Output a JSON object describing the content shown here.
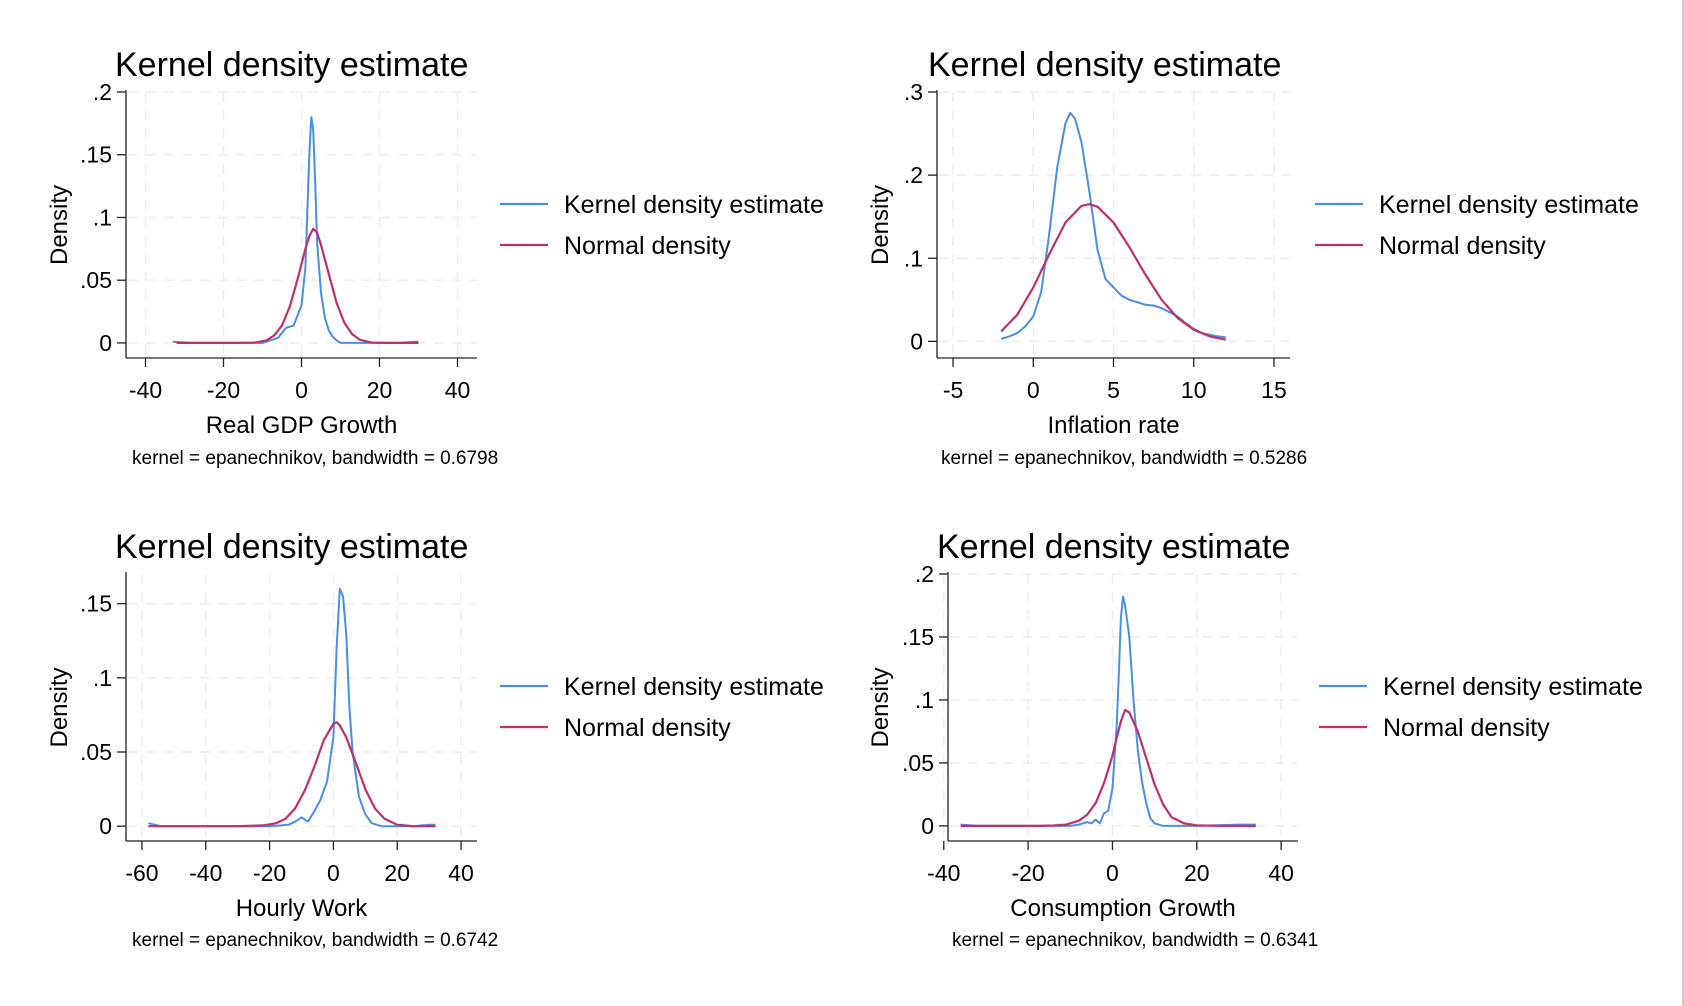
{
  "colors": {
    "kde": "#4a8fe7",
    "normal": "#c0306a"
  },
  "chart_data": [
    {
      "type": "line",
      "title": "Kernel density estimate",
      "xlabel": "Real GDP Growth",
      "ylabel": "Density",
      "note": "kernel = epanechnikov, bandwidth = 0.6798",
      "xlim": [
        -45,
        45
      ],
      "ylim": [
        -0.012,
        0.2
      ],
      "xticks": [
        -40,
        -20,
        0,
        20,
        40
      ],
      "xtick_labels": [
        "-40",
        "-20",
        "0",
        "20",
        "40"
      ],
      "yticks": [
        0,
        0.05,
        0.1,
        0.15,
        0.2
      ],
      "ytick_labels": [
        "0",
        ".05",
        ".1",
        ".15",
        ".2"
      ],
      "grid": true,
      "legend_position": "right",
      "series": [
        {
          "name": "Kernel density estimate",
          "x": [
            -33,
            -31,
            -28,
            -20,
            -10,
            -6,
            -4,
            -2,
            -1,
            0,
            1,
            2,
            2.5,
            3,
            3.5,
            4,
            5,
            6,
            7,
            8,
            9,
            10,
            12,
            15,
            20,
            25,
            29,
            30
          ],
          "y": [
            0.001,
            0.0005,
            0,
            0,
            0,
            0.004,
            0.012,
            0.014,
            0.022,
            0.03,
            0.06,
            0.15,
            0.18,
            0.17,
            0.13,
            0.08,
            0.04,
            0.02,
            0.01,
            0.005,
            0.002,
            0,
            0,
            0,
            0,
            0,
            0.001,
            0.001
          ]
        },
        {
          "name": "Normal density",
          "x": [
            -32,
            -28,
            -24,
            -20,
            -16,
            -12,
            -9,
            -7,
            -5,
            -3,
            -1,
            1,
            2,
            3,
            4,
            5,
            7,
            9,
            11,
            13,
            15,
            18,
            22,
            26,
            30
          ],
          "y": [
            0,
            0,
            0,
            0,
            0,
            0.0003,
            0.002,
            0.006,
            0.014,
            0.029,
            0.051,
            0.075,
            0.085,
            0.091,
            0.088,
            0.078,
            0.055,
            0.032,
            0.016,
            0.007,
            0.0025,
            0.0003,
            0,
            0,
            0
          ]
        }
      ]
    },
    {
      "type": "line",
      "title": "Kernel density estimate",
      "xlabel": "Inflation rate",
      "ylabel": "Density",
      "note": "kernel = epanechnikov, bandwidth = 0.5286",
      "xlim": [
        -6,
        16
      ],
      "ylim": [
        -0.02,
        0.3
      ],
      "xticks": [
        -5,
        0,
        5,
        10,
        15
      ],
      "xtick_labels": [
        "-5",
        "0",
        "5",
        "10",
        "15"
      ],
      "yticks": [
        0,
        0.1,
        0.2,
        0.3
      ],
      "ytick_labels": [
        "0",
        ".1",
        ".2",
        ".3"
      ],
      "grid": true,
      "legend_position": "right",
      "series": [
        {
          "name": "Kernel density estimate",
          "x": [
            -2,
            -1.5,
            -1,
            -0.5,
            0,
            0.5,
            1,
            1.5,
            2,
            2.3,
            2.6,
            3,
            3.5,
            4,
            4.5,
            5,
            5.5,
            6,
            6.5,
            7,
            7.5,
            8,
            8.5,
            9,
            9.5,
            10,
            10.5,
            11,
            11.5,
            12
          ],
          "y": [
            0.003,
            0.006,
            0.01,
            0.018,
            0.03,
            0.06,
            0.13,
            0.21,
            0.262,
            0.275,
            0.268,
            0.24,
            0.18,
            0.11,
            0.075,
            0.065,
            0.055,
            0.05,
            0.047,
            0.044,
            0.043,
            0.04,
            0.035,
            0.03,
            0.022,
            0.015,
            0.01,
            0.008,
            0.006,
            0.005
          ]
        },
        {
          "name": "Normal density",
          "x": [
            -2,
            -1,
            0,
            1,
            2,
            3,
            3.5,
            4,
            5,
            6,
            7,
            8,
            9,
            10,
            11,
            12
          ],
          "y": [
            0.012,
            0.032,
            0.065,
            0.105,
            0.143,
            0.163,
            0.165,
            0.162,
            0.143,
            0.113,
            0.08,
            0.05,
            0.028,
            0.014,
            0.006,
            0.002
          ]
        }
      ]
    },
    {
      "type": "line",
      "title": "Kernel density estimate",
      "xlabel": "Hourly Work",
      "ylabel": "Density",
      "note": "kernel = epanechnikov, bandwidth = 0.6742",
      "xlim": [
        -65,
        45
      ],
      "ylim": [
        -0.01,
        0.17
      ],
      "xticks": [
        -60,
        -40,
        -20,
        0,
        20,
        40
      ],
      "xtick_labels": [
        "-60",
        "-40",
        "-20",
        "0",
        "20",
        "40"
      ],
      "yticks": [
        0,
        0.05,
        0.1,
        0.15
      ],
      "ytick_labels": [
        "0",
        ".05",
        ".1",
        ".15"
      ],
      "grid": true,
      "legend_position": "right",
      "series": [
        {
          "name": "Kernel density estimate",
          "x": [
            -58,
            -56,
            -54,
            -40,
            -20,
            -14,
            -12,
            -10,
            -8,
            -6,
            -4,
            -2,
            0,
            1,
            2,
            3,
            4,
            5,
            6,
            8,
            10,
            12,
            15,
            20,
            25,
            30,
            32
          ],
          "y": [
            0.002,
            0.001,
            0,
            0,
            0,
            0.001,
            0.003,
            0.006,
            0.003,
            0.01,
            0.018,
            0.03,
            0.06,
            0.12,
            0.16,
            0.155,
            0.13,
            0.08,
            0.05,
            0.02,
            0.008,
            0.002,
            0,
            0,
            0,
            0.001,
            0.001
          ]
        },
        {
          "name": "Normal density",
          "x": [
            -58,
            -40,
            -30,
            -22,
            -18,
            -15,
            -12,
            -9,
            -6,
            -3,
            0,
            1,
            2,
            4,
            7,
            10,
            13,
            16,
            20,
            25,
            30,
            32
          ],
          "y": [
            0,
            0,
            0,
            0.0005,
            0.002,
            0.005,
            0.012,
            0.024,
            0.04,
            0.058,
            0.069,
            0.07,
            0.068,
            0.06,
            0.043,
            0.025,
            0.012,
            0.005,
            0.001,
            0,
            0,
            0
          ]
        }
      ]
    },
    {
      "type": "line",
      "title": "Kernel density estimate",
      "xlabel": "Consumption Growth",
      "ylabel": "Density",
      "note": "kernel = epanechnikov, bandwidth = 0.6341",
      "xlim": [
        -39,
        44
      ],
      "ylim": [
        -0.012,
        0.2
      ],
      "xticks": [
        -40,
        -20,
        0,
        20,
        40
      ],
      "xtick_labels": [
        "-40",
        "-20",
        "0",
        "20",
        "40"
      ],
      "yticks": [
        0,
        0.05,
        0.1,
        0.15,
        0.2
      ],
      "ytick_labels": [
        "0",
        ".05",
        ".1",
        ".15",
        ".2"
      ],
      "grid": true,
      "legend_position": "right",
      "series": [
        {
          "name": "Kernel density estimate",
          "x": [
            -36,
            -34,
            -32,
            -20,
            -10,
            -8,
            -6,
            -5,
            -4,
            -3,
            -2,
            -1,
            0,
            1,
            1.5,
            2,
            2.5,
            3,
            4,
            5,
            6,
            7,
            8,
            9,
            10,
            12,
            15,
            20,
            30,
            34
          ],
          "y": [
            0.001,
            0.0005,
            0,
            0,
            0,
            0.001,
            0.003,
            0.002,
            0.005,
            0.002,
            0.01,
            0.012,
            0.03,
            0.08,
            0.12,
            0.165,
            0.182,
            0.175,
            0.15,
            0.1,
            0.06,
            0.035,
            0.018,
            0.006,
            0.002,
            0,
            0,
            0,
            0.001,
            0.001
          ]
        },
        {
          "name": "Normal density",
          "x": [
            -36,
            -30,
            -24,
            -18,
            -14,
            -11,
            -8,
            -6,
            -4,
            -2,
            0,
            1,
            2,
            3,
            4,
            6,
            8,
            10,
            12,
            14,
            17,
            20,
            26,
            34
          ],
          "y": [
            0,
            0,
            0,
            0,
            0.0003,
            0.001,
            0.004,
            0.009,
            0.018,
            0.034,
            0.056,
            0.07,
            0.083,
            0.092,
            0.09,
            0.075,
            0.054,
            0.033,
            0.017,
            0.007,
            0.002,
            0.0005,
            0,
            0
          ]
        }
      ]
    }
  ]
}
